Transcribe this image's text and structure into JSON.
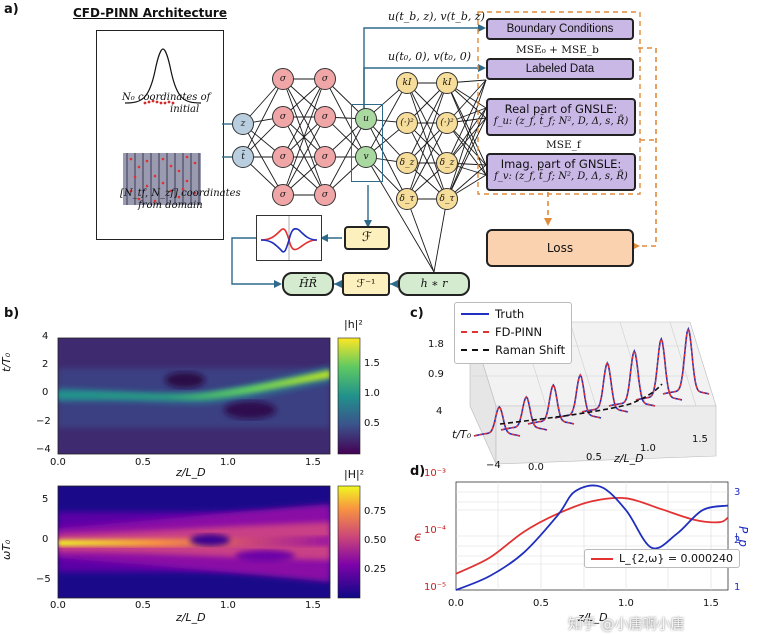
{
  "panel_a": {
    "label": "a)",
    "title": "CFD-PINN Architecture",
    "initial_label_line1": "N₀ coordinates of",
    "initial_label_line2": "initial",
    "domain_label_line1": "[N_tf, N_zf] coordinates",
    "domain_label_line2": "from domain",
    "inputs": [
      "z",
      "t̄"
    ],
    "hidden_node": "σ",
    "outputs": [
      "u",
      "v"
    ],
    "op_nodes": [
      "kI",
      "(·)²",
      "δ_z",
      "δ_τ"
    ],
    "boundary_eq": "u(t_b, z), v(t_b, z)",
    "initial_eq": "u(t₀, 0), v(t₀, 0)",
    "boxes": {
      "boundary": "Boundary Conditions",
      "mse0": "MSE₀ + MSE_b",
      "labeled": "Labeled Data",
      "real_title": "Real part of GNSLE:",
      "real_eq": "f_u: (z_f, t̄_f; N², D, Δ, s, R̃)",
      "msef": "MSE_f",
      "imag_title": "Imag. part of GNSLE:",
      "imag_eq": "f_v: (z_f, t̄_f; N², D, Δ, s, R̃)",
      "loss": "Loss",
      "fourier": "ℱ",
      "inv_fourier": "ℱ⁻¹",
      "hr_tilde": "H̃R̃",
      "h_conv_r": "h ∗ r"
    }
  },
  "panel_b": {
    "label": "b)",
    "top": {
      "ylabel": "t/T₀",
      "xlabel": "z/L_D",
      "colorbar_label": "|h|²",
      "yticks": [
        "4",
        "2",
        "0",
        "−2",
        "−4"
      ],
      "xticks": [
        "0.0",
        "0.5",
        "1.0",
        "1.5"
      ],
      "cbticks": [
        "1.5",
        "1.0",
        "0.5"
      ]
    },
    "bottom": {
      "ylabel": "ωT₀",
      "xlabel": "z/L_D",
      "colorbar_label": "|H|²",
      "yticks": [
        "5",
        "0",
        "−5"
      ],
      "xticks": [
        "0.0",
        "0.5",
        "1.0",
        "1.5"
      ],
      "cbticks": [
        "0.75",
        "0.50",
        "0.25"
      ]
    }
  },
  "panel_c": {
    "label": "c)",
    "legend": [
      "Truth",
      "FD-PINN",
      "Raman Shift"
    ],
    "zticks": [
      "1.8",
      "0.9"
    ],
    "tticks": [
      "4",
      "−4"
    ],
    "tlabel": "t/T₀",
    "xticks": [
      "0.0",
      "0.5",
      "1.0",
      "1.5"
    ],
    "xlabel": "z/L_D"
  },
  "panel_d": {
    "label": "d)",
    "ylabel_left": "ϵ",
    "ylabel_right": "P_p",
    "yticks_left": [
      "10⁻³",
      "10⁻⁴",
      "10⁻⁵"
    ],
    "yticks_right": [
      "3",
      "2",
      "1"
    ],
    "xticks": [
      "0.0",
      "0.5",
      "1.0",
      "1.5"
    ],
    "xlabel": "z/L_D",
    "legend": "L_{2,ω} = 0.000240"
  },
  "watermark": "知乎 @小唐啊小唐",
  "colors": {
    "truth": "#1f2fbf",
    "pinn": "#e23232",
    "raman": "#111111",
    "purple_box": "#c9b7e6",
    "orange_box": "#fbd2b0",
    "dashed_orange": "#e08a3a",
    "blue_arrow": "#2e6a8a"
  },
  "chart_data": [
    {
      "type": "heatmap",
      "title": "",
      "xlabel": "z/L_D",
      "ylabel": "t/T₀",
      "colorbar": "|h|²",
      "xlim": [
        0,
        1.6
      ],
      "ylim": [
        -4,
        4
      ],
      "clim": [
        0,
        1.9
      ]
    },
    {
      "type": "heatmap",
      "title": "",
      "xlabel": "z/L_D",
      "ylabel": "ωT₀",
      "colorbar": "|H|²",
      "xlim": [
        0,
        1.6
      ],
      "ylim": [
        -7,
        7
      ],
      "clim": [
        0,
        0.95
      ]
    },
    {
      "type": "line",
      "xlabel": "z/L_D",
      "ylabel_left": "ϵ",
      "ylabel_right": "P_p",
      "xlim": [
        0,
        1.6
      ],
      "ylim_left": [
        1e-05,
        0.001
      ],
      "ylim_right": [
        1,
        3.3
      ],
      "y_scale_left": "log",
      "series": [
        {
          "name": "",
          "axis": "left",
          "color": "#e23232",
          "x": [
            0.0,
            0.2,
            0.4,
            0.6,
            0.8,
            1.0,
            1.2,
            1.4,
            1.55,
            1.6
          ],
          "y": [
            2e-05,
            4e-05,
            0.00012,
            0.00026,
            0.00044,
            0.0005,
            0.00032,
            0.0002,
            0.00018,
            0.00022
          ]
        },
        {
          "name": "",
          "axis": "right",
          "color": "#1f2fbf",
          "x": [
            0.0,
            0.2,
            0.4,
            0.6,
            0.7,
            0.85,
            1.0,
            1.15,
            1.3,
            1.45,
            1.6
          ],
          "y": [
            1.0,
            1.3,
            1.8,
            2.6,
            3.1,
            3.2,
            2.7,
            1.9,
            2.2,
            2.7,
            2.8
          ]
        }
      ],
      "legend": "L_{2,ω} = 0.000240"
    }
  ]
}
